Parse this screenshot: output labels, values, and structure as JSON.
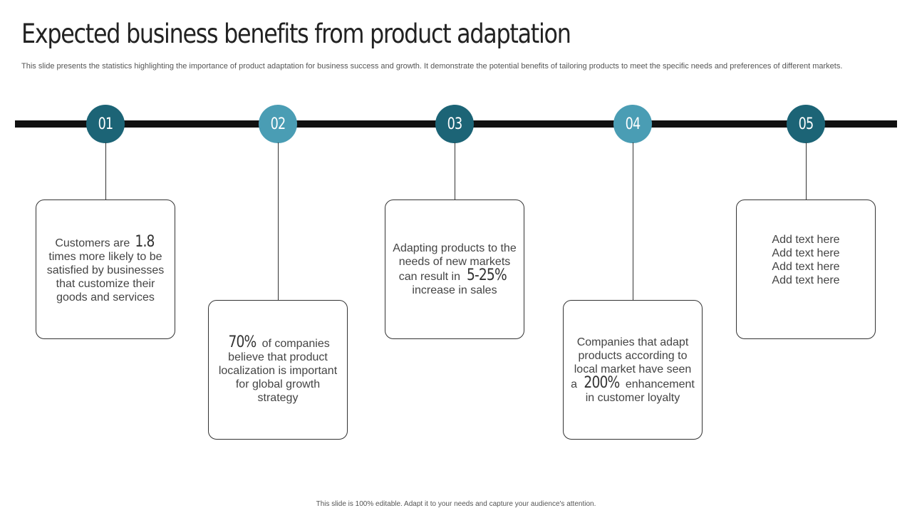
{
  "title": "Expected business benefits from product adaptation",
  "subtitle": "This slide presents the statistics highlighting the importance of product adaptation for business success and growth. It demonstrate the potential benefits of tailoring products to meet the specific needs and preferences of different markets.",
  "colors": {
    "dark_teal": "#1c6476",
    "light_teal": "#4a9db4",
    "timeline": "#111111"
  },
  "steps": [
    {
      "number": "01",
      "pre": "Customers are ",
      "stat": "1.8",
      "post": " times more likely to be satisfied by businesses that customize their goods and services"
    },
    {
      "number": "02",
      "pre": "",
      "stat": "70%",
      "post": " of companies believe that product localization is important for global growth strategy"
    },
    {
      "number": "03",
      "pre": "Adapting products to the needs of new markets can result in ",
      "stat": "5-25%",
      "post": " increase in sales"
    },
    {
      "number": "04",
      "pre": "Companies that adapt products according to local market have seen a ",
      "stat": "200%",
      "post": " enhancement in customer loyalty"
    },
    {
      "number": "05",
      "lines": [
        "Add text here",
        "Add text here",
        "Add text here",
        "Add text here"
      ]
    }
  ],
  "footer": "This slide is 100% editable. Adapt it to your needs and capture your audience's attention."
}
